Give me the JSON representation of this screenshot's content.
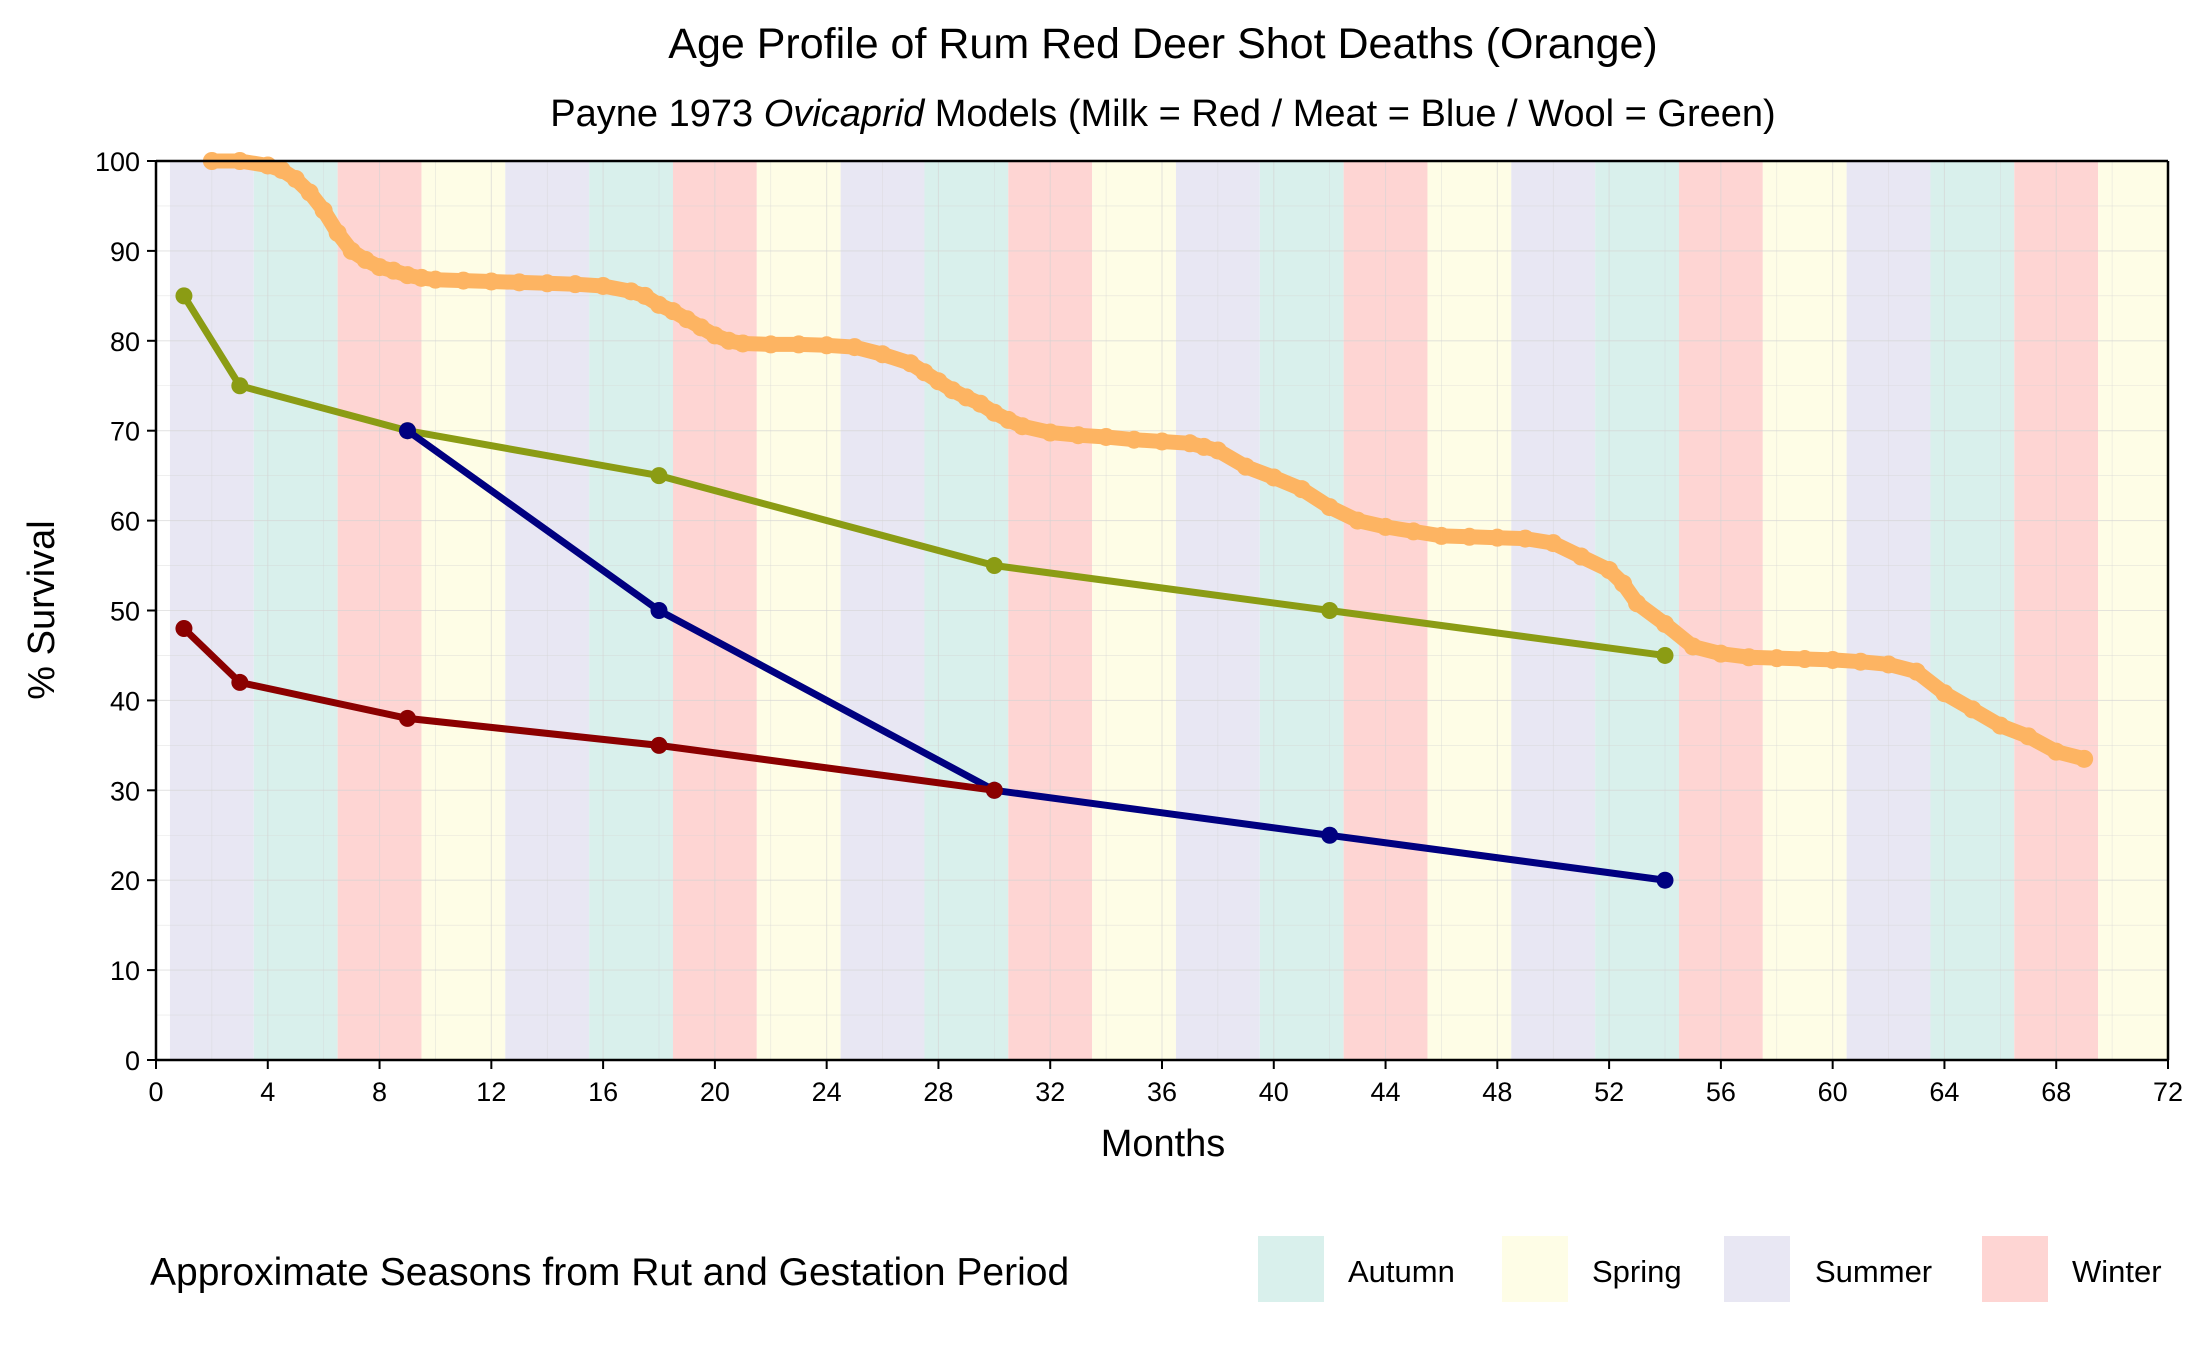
{
  "chart_data": {
    "type": "line",
    "title": "Age Profile of Rum Red Deer Shot Deaths (Orange)",
    "subtitle": {
      "before": "Payne 1973 ",
      "italic": "Ovicaprid",
      "after": " Models (Milk = Red / Meat = Blue / Wool = Green)"
    },
    "xlabel": "Months",
    "ylabel": "% Survival",
    "xlim": [
      0,
      72
    ],
    "ylim": [
      0,
      100
    ],
    "xticks": [
      0,
      4,
      8,
      12,
      16,
      20,
      24,
      28,
      32,
      36,
      40,
      44,
      48,
      52,
      56,
      60,
      64,
      68,
      72
    ],
    "yticks": [
      0,
      10,
      20,
      30,
      40,
      50,
      60,
      70,
      80,
      90,
      100
    ],
    "grid": true,
    "legend": {
      "position": "bottom",
      "title": "Approximate Seasons from Rut and Gestation Period",
      "items": [
        {
          "label": "Autumn",
          "color": "#d9f0ec"
        },
        {
          "label": "Spring",
          "color": "#fefde6"
        },
        {
          "label": "Summer",
          "color": "#e8e7f3"
        },
        {
          "label": "Winter",
          "color": "#fed5d3"
        }
      ]
    },
    "season_bands": [
      {
        "season": "Summer",
        "start": 0.5,
        "end": 3.5
      },
      {
        "season": "Autumn",
        "start": 3.5,
        "end": 6.5
      },
      {
        "season": "Winter",
        "start": 6.5,
        "end": 9.5
      },
      {
        "season": "Spring",
        "start": 9.5,
        "end": 12.5
      },
      {
        "season": "Summer",
        "start": 12.5,
        "end": 15.5
      },
      {
        "season": "Autumn",
        "start": 15.5,
        "end": 18.5
      },
      {
        "season": "Winter",
        "start": 18.5,
        "end": 21.5
      },
      {
        "season": "Spring",
        "start": 21.5,
        "end": 24.5
      },
      {
        "season": "Summer",
        "start": 24.5,
        "end": 27.5
      },
      {
        "season": "Autumn",
        "start": 27.5,
        "end": 30.5
      },
      {
        "season": "Winter",
        "start": 30.5,
        "end": 33.5
      },
      {
        "season": "Spring",
        "start": 33.5,
        "end": 36.5
      },
      {
        "season": "Summer",
        "start": 36.5,
        "end": 39.5
      },
      {
        "season": "Autumn",
        "start": 39.5,
        "end": 42.5
      },
      {
        "season": "Winter",
        "start": 42.5,
        "end": 45.5
      },
      {
        "season": "Spring",
        "start": 45.5,
        "end": 48.5
      },
      {
        "season": "Summer",
        "start": 48.5,
        "end": 51.5
      },
      {
        "season": "Autumn",
        "start": 51.5,
        "end": 54.5
      },
      {
        "season": "Winter",
        "start": 54.5,
        "end": 57.5
      },
      {
        "season": "Spring",
        "start": 57.5,
        "end": 60.5
      },
      {
        "season": "Summer",
        "start": 60.5,
        "end": 63.5
      },
      {
        "season": "Autumn",
        "start": 63.5,
        "end": 66.5
      },
      {
        "season": "Winter",
        "start": 66.5,
        "end": 69.5
      },
      {
        "season": "Spring",
        "start": 69.5,
        "end": 72
      }
    ],
    "series": [
      {
        "key": "shot",
        "color": "#fdb462",
        "x": [
          2,
          3,
          4,
          4.5,
          5,
          5.5,
          6,
          6.5,
          7,
          7.5,
          8,
          8.5,
          9,
          9.5,
          10,
          11,
          12,
          13,
          14,
          15,
          16,
          17,
          17.5,
          18,
          18.5,
          19,
          19.5,
          20,
          20.5,
          21,
          22,
          23,
          24,
          25,
          26,
          27,
          27.5,
          28,
          28.5,
          29,
          29.5,
          30,
          30.5,
          31,
          32,
          33,
          34,
          35,
          36,
          37,
          37.5,
          38,
          39,
          40,
          41,
          42,
          43,
          44,
          45,
          46,
          47,
          48,
          49,
          50,
          51,
          52,
          52.5,
          53,
          54,
          55,
          56,
          57,
          58,
          59,
          60,
          61,
          62,
          63,
          64,
          65,
          66,
          67,
          68,
          69
        ],
        "y": [
          100,
          100,
          99.5,
          99,
          98,
          96.5,
          94.5,
          92,
          90,
          89,
          88.2,
          87.8,
          87.3,
          87,
          86.8,
          86.7,
          86.6,
          86.5,
          86.4,
          86.3,
          86.1,
          85.5,
          85,
          84,
          83.3,
          82.4,
          81.5,
          80.6,
          80,
          79.7,
          79.6,
          79.6,
          79.5,
          79.3,
          78.5,
          77.5,
          76.5,
          75.5,
          74.5,
          73.7,
          73,
          72,
          71.2,
          70.5,
          69.8,
          69.5,
          69.3,
          69,
          68.8,
          68.6,
          68.2,
          67.8,
          66,
          64.8,
          63.5,
          61.5,
          60,
          59.3,
          58.8,
          58.3,
          58.2,
          58.1,
          58,
          57.5,
          56,
          54.5,
          53,
          50.8,
          48.5,
          46,
          45.2,
          44.8,
          44.7,
          44.6,
          44.5,
          44.3,
          44,
          43.2,
          40.8,
          39,
          37.2,
          36,
          34.3,
          33.5
        ]
      },
      {
        "key": "wool",
        "color": "#8b9c14",
        "x": [
          1,
          3,
          9,
          18,
          30,
          42,
          54
        ],
        "y": [
          85,
          75,
          70,
          65,
          55,
          50,
          45
        ]
      },
      {
        "key": "meat",
        "color": "#000080",
        "x": [
          9,
          18,
          30,
          42,
          54
        ],
        "y": [
          70,
          50,
          30,
          25,
          20
        ]
      },
      {
        "key": "milk",
        "color": "#8b0000",
        "x": [
          1,
          3,
          9,
          18,
          30
        ],
        "y": [
          48,
          42,
          38,
          35,
          30
        ]
      }
    ]
  }
}
